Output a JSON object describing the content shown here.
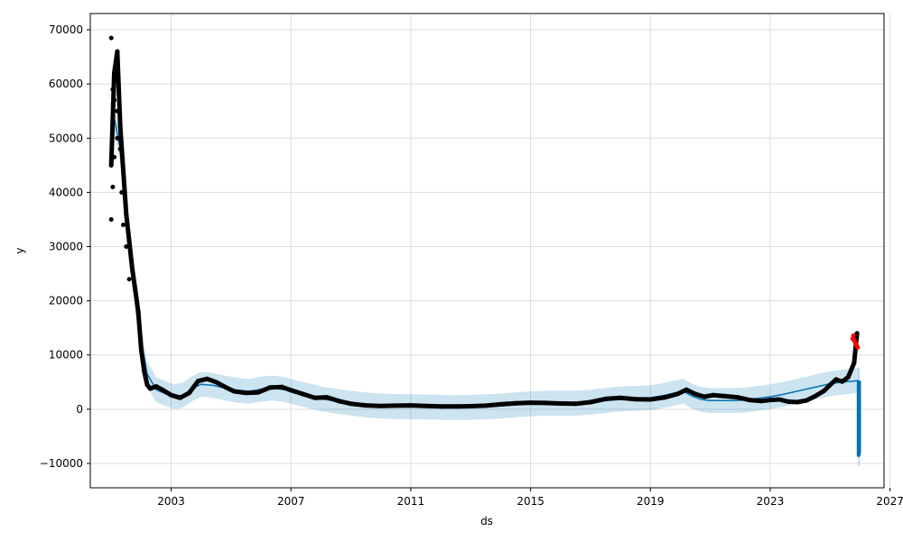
{
  "chart_data": {
    "type": "line",
    "title": "",
    "xlabel": "ds",
    "ylabel": "y",
    "xlim": [
      2000.3,
      2026.8
    ],
    "ylim": [
      -14500,
      73000
    ],
    "grid": true,
    "x_ticks": [
      2003,
      2007,
      2011,
      2015,
      2019,
      2023,
      2027
    ],
    "x_tick_labels": [
      "2003",
      "2007",
      "2011",
      "2015",
      "2019",
      "2023",
      "2027"
    ],
    "y_ticks": [
      -10000,
      0,
      10000,
      20000,
      30000,
      40000,
      50000,
      60000,
      70000
    ],
    "y_tick_labels": [
      "−10000",
      "0",
      "10000",
      "20000",
      "30000",
      "40000",
      "50000",
      "60000",
      "70000"
    ],
    "colors": {
      "observed": "#000000",
      "forecast": "#0072B2",
      "interval": "#0072B2",
      "changepoint": "#FF0000",
      "grid": "#dddddd",
      "axes": "#000000"
    },
    "series": [
      {
        "role": "observed",
        "style": "points",
        "x": [
          2001.0,
          2001.1,
          2001.2,
          2001.3,
          2001.4,
          2001.5,
          2001.6,
          2001.7,
          2001.8,
          2001.9,
          2002.0,
          2002.1,
          2002.2,
          2002.3,
          2002.5,
          2002.7,
          2003.0,
          2003.3,
          2003.6,
          2003.9,
          2004.2,
          2004.5,
          2004.8,
          2005.1,
          2005.5,
          2005.9,
          2006.3,
          2006.7,
          2007.0,
          2007.4,
          2007.8,
          2008.2,
          2008.6,
          2009.0,
          2009.5,
          2010.0,
          2010.5,
          2011.0,
          2011.5,
          2012.0,
          2012.5,
          2013.0,
          2013.5,
          2014.0,
          2014.5,
          2015.0,
          2015.5,
          2016.0,
          2016.5,
          2017.0,
          2017.5,
          2018.0,
          2018.5,
          2019.0,
          2019.5,
          2019.9,
          2020.2,
          2020.5,
          2020.8,
          2021.1,
          2021.5,
          2021.9,
          2022.3,
          2022.7,
          2023.0,
          2023.3,
          2023.6,
          2023.9,
          2024.2,
          2024.5,
          2024.8,
          2025.0,
          2025.2,
          2025.4,
          2025.6,
          2025.8,
          2025.9
        ],
        "y": [
          45000,
          62000,
          66000,
          52000,
          44000,
          36000,
          31000,
          26000,
          22000,
          18000,
          11000,
          7000,
          4500,
          3800,
          4200,
          3600,
          2600,
          2100,
          3000,
          5200,
          5600,
          5000,
          4100,
          3300,
          3000,
          3100,
          4000,
          4100,
          3500,
          2800,
          2100,
          2200,
          1500,
          1000,
          700,
          600,
          650,
          700,
          600,
          500,
          500,
          550,
          650,
          900,
          1100,
          1200,
          1150,
          1050,
          1000,
          1300,
          1900,
          2100,
          1850,
          1800,
          2200,
          2800,
          3600,
          2800,
          2300,
          2600,
          2400,
          2200,
          1700,
          1500,
          1700,
          1800,
          1400,
          1300,
          1600,
          2400,
          3400,
          4500,
          5500,
          5100,
          5900,
          8500,
          14000
        ]
      },
      {
        "role": "observed_scatter_extremes",
        "style": "points",
        "x": [
          2001.0,
          2001.0,
          2001.05,
          2001.05,
          2001.1,
          2001.1,
          2001.15,
          2001.2,
          2001.2,
          2001.3,
          2001.35,
          2001.4,
          2001.5,
          2001.6
        ],
        "y": [
          35000,
          68500,
          41000,
          59000,
          46500,
          57000,
          63000,
          50000,
          55000,
          48000,
          40000,
          34000,
          30000,
          24000
        ]
      },
      {
        "role": "forecast_changepoints",
        "style": "points",
        "x": [
          2025.75,
          2025.78,
          2025.8,
          2025.83,
          2025.86,
          2025.88,
          2025.9,
          2025.92
        ],
        "y": [
          13000,
          13600,
          12800,
          12400,
          12000,
          11800,
          11600,
          11400
        ]
      },
      {
        "name": "",
        "role": "forecast",
        "style": "line",
        "x": [
          2001.0,
          2001.3,
          2001.6,
          2001.9,
          2002.2,
          2002.5,
          2002.8,
          2003.1,
          2003.4,
          2003.7,
          2004.0,
          2004.4,
          2004.8,
          2005.2,
          2005.6,
          2006.0,
          2006.4,
          2006.8,
          2007.2,
          2007.6,
          2008.0,
          2008.5,
          2009.0,
          2009.5,
          2010.0,
          2010.5,
          2011.0,
          2011.5,
          2012.0,
          2012.5,
          2013.0,
          2013.5,
          2014.0,
          2014.5,
          2015.0,
          2015.5,
          2016.0,
          2016.5,
          2017.0,
          2017.5,
          2018.0,
          2018.5,
          2019.0,
          2019.5,
          2019.8,
          2020.1,
          2020.4,
          2020.7,
          2021.0,
          2021.4,
          2021.8,
          2022.2,
          2022.6,
          2023.0,
          2023.4,
          2023.8,
          2024.2,
          2024.6,
          2025.0,
          2025.4,
          2025.8,
          2025.95
        ],
        "y": [
          56500,
          48000,
          30000,
          15500,
          6500,
          3600,
          2900,
          2300,
          2600,
          3800,
          4600,
          4400,
          3900,
          3500,
          3300,
          3700,
          3900,
          3600,
          3000,
          2500,
          1900,
          1500,
          1100,
          800,
          600,
          500,
          450,
          400,
          350,
          300,
          350,
          450,
          600,
          800,
          1000,
          1100,
          1100,
          1100,
          1300,
          1600,
          1900,
          2000,
          2100,
          2600,
          3000,
          3300,
          2400,
          1800,
          1600,
          1600,
          1600,
          1700,
          2000,
          2300,
          2700,
          3200,
          3700,
          4200,
          4700,
          5000,
          5200,
          5300
        ]
      },
      {
        "role": "forecast_drop",
        "style": "line",
        "x": [
          2025.95,
          2025.95,
          2025.97,
          2025.97
        ],
        "y": [
          5300,
          -8500,
          -8000,
          5200
        ]
      },
      {
        "role": "uncertainty_interval",
        "style": "band",
        "x": [
          2001.0,
          2001.3,
          2001.6,
          2001.9,
          2002.2,
          2002.5,
          2002.8,
          2003.1,
          2003.4,
          2003.7,
          2004.0,
          2004.4,
          2004.8,
          2005.2,
          2005.6,
          2006.0,
          2006.4,
          2006.8,
          2007.2,
          2007.6,
          2008.0,
          2008.5,
          2009.0,
          2009.5,
          2010.0,
          2010.5,
          2011.0,
          2011.5,
          2012.0,
          2012.5,
          2013.0,
          2013.5,
          2014.0,
          2014.5,
          2015.0,
          2015.5,
          2016.0,
          2016.5,
          2017.0,
          2017.5,
          2018.0,
          2018.5,
          2019.0,
          2019.5,
          2019.8,
          2020.1,
          2020.4,
          2020.7,
          2021.0,
          2021.4,
          2021.8,
          2022.2,
          2022.6,
          2023.0,
          2023.4,
          2023.8,
          2024.2,
          2024.6,
          2025.0,
          2025.4,
          2025.8,
          2025.95
        ],
        "lower": [
          54200,
          45700,
          27700,
          13200,
          4200,
          1300,
          600,
          0,
          300,
          1500,
          2300,
          2100,
          1600,
          1200,
          1000,
          1400,
          1600,
          1300,
          700,
          200,
          -400,
          -800,
          -1200,
          -1500,
          -1700,
          -1800,
          -1850,
          -1900,
          -1950,
          -2000,
          -1950,
          -1850,
          -1700,
          -1500,
          -1300,
          -1200,
          -1200,
          -1200,
          -1000,
          -700,
          -400,
          -300,
          -200,
          300,
          700,
          1000,
          100,
          -500,
          -700,
          -700,
          -700,
          -600,
          -300,
          0,
          400,
          900,
          1400,
          1900,
          2400,
          2700,
          2900,
          3000
        ],
        "upper": [
          58800,
          50300,
          32300,
          17800,
          8800,
          5900,
          5200,
          4600,
          4900,
          6100,
          6900,
          6700,
          6200,
          5800,
          5600,
          6000,
          6200,
          5900,
          5300,
          4800,
          4200,
          3800,
          3400,
          3100,
          2900,
          2800,
          2750,
          2700,
          2650,
          2600,
          2650,
          2750,
          2900,
          3100,
          3300,
          3400,
          3400,
          3400,
          3600,
          3900,
          4200,
          4300,
          4400,
          4900,
          5300,
          5600,
          4700,
          4100,
          3900,
          3900,
          3900,
          4000,
          4300,
          4600,
          5000,
          5500,
          6000,
          6500,
          7000,
          7300,
          7500,
          7600
        ]
      },
      {
        "role": "uncertainty_interval_drop",
        "style": "band",
        "x": [
          2025.93,
          2026.0
        ],
        "lower": [
          -10500,
          -10500
        ],
        "upper": [
          7600,
          7600
        ]
      }
    ]
  }
}
